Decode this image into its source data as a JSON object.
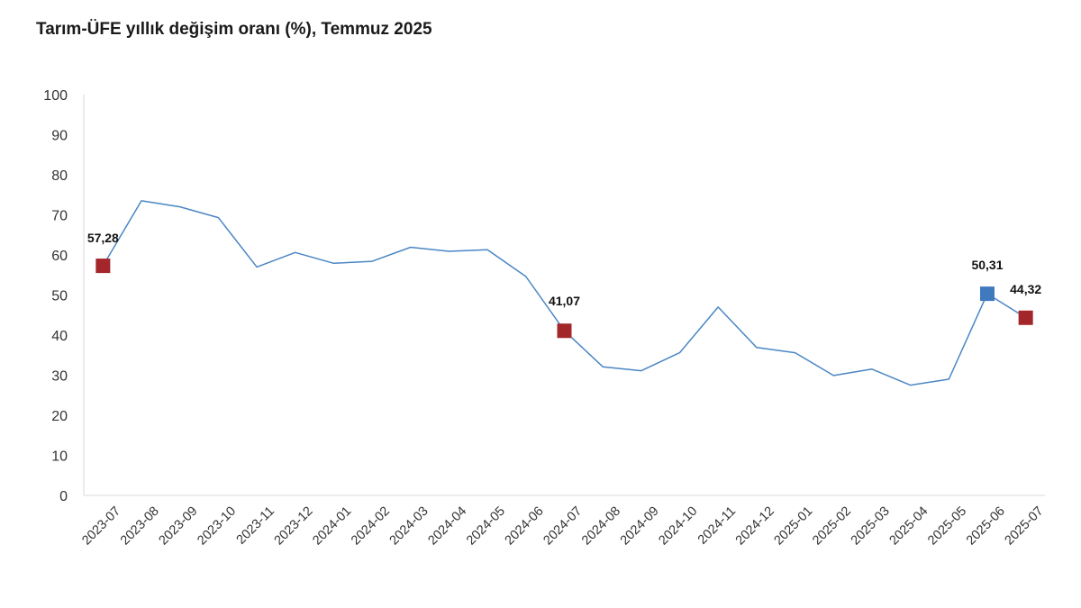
{
  "title": "Tarım-ÜFE yıllık değişim oranı (%), Temmuz 2025",
  "colors": {
    "line": "#4a86c4",
    "marker_red": "#a3262a",
    "marker_blue": "#3f79be",
    "axis": "#d9d9d9"
  },
  "chart_data": {
    "type": "line",
    "title": "Tarım-ÜFE yıllık değişim oranı (%), Temmuz 2025",
    "xlabel": "",
    "ylabel": "",
    "ylim": [
      0,
      100
    ],
    "yticks": [
      0,
      10,
      20,
      30,
      40,
      50,
      60,
      70,
      80,
      90,
      100
    ],
    "grid": false,
    "legend": "none",
    "categories": [
      "2023-07",
      "2023-08",
      "2023-09",
      "2023-10",
      "2023-11",
      "2023-12",
      "2024-01",
      "2024-02",
      "2024-03",
      "2024-04",
      "2024-05",
      "2024-06",
      "2024-07",
      "2024-08",
      "2024-09",
      "2024-10",
      "2024-11",
      "2024-12",
      "2025-01",
      "2025-02",
      "2025-03",
      "2025-04",
      "2025-05",
      "2025-06",
      "2025-07"
    ],
    "series": [
      {
        "values": [
          57.28,
          73.5,
          72.0,
          69.3,
          57.0,
          60.6,
          57.9,
          58.4,
          61.9,
          60.9,
          61.3,
          54.6,
          41.07,
          32.1,
          31.1,
          35.6,
          47.0,
          36.9,
          35.6,
          29.9,
          31.5,
          27.5,
          29.0,
          50.31,
          44.32
        ]
      }
    ],
    "highlights": [
      {
        "category": "2023-07",
        "value": 57.28,
        "label": "57,28",
        "color": "red"
      },
      {
        "category": "2024-07",
        "value": 41.07,
        "label": "41,07",
        "color": "red"
      },
      {
        "category": "2025-06",
        "value": 50.31,
        "label": "50,31",
        "color": "blue"
      },
      {
        "category": "2025-07",
        "value": 44.32,
        "label": "44,32",
        "color": "red"
      }
    ]
  }
}
